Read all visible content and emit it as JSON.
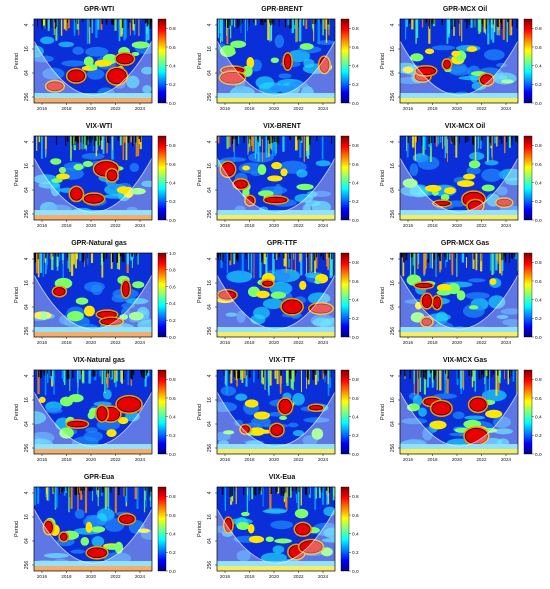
{
  "chart_data": {
    "type": "heatmap",
    "ylabel": "Period",
    "y_ticks": [
      "4",
      "16",
      "64",
      "256"
    ],
    "x_ticks": [
      "2016",
      "2018",
      "2020",
      "2022",
      "2024"
    ],
    "colorbar_ticks": [
      "0.0",
      "0.2",
      "0.4",
      "0.6",
      "0.8"
    ],
    "colorbar_ticks_gpr_natural_gas": [
      "0.0",
      "0.2",
      "0.4",
      "0.6",
      "0.8",
      "1.0"
    ],
    "colorscale": [
      "#00007f",
      "#0000ff",
      "#0080ff",
      "#00ffff",
      "#80ff80",
      "#ffff00",
      "#ff8000",
      "#ff0000",
      "#7f0000"
    ],
    "panels": [
      {
        "id": "gpr-wti",
        "title": "GPR-WTI"
      },
      {
        "id": "gpr-brent",
        "title": "GPR-BRENT"
      },
      {
        "id": "gpr-mcx-oil",
        "title": "GPR-MCX Oil"
      },
      {
        "id": "vix-wti",
        "title": "VIX-WTI"
      },
      {
        "id": "vix-brent",
        "title": "VIX-BRENT"
      },
      {
        "id": "vix-mcx-oil",
        "title": "VIX-MCX Oil"
      },
      {
        "id": "gpr-natural-gas",
        "title": "GPR-Natural gas"
      },
      {
        "id": "gpr-ttf",
        "title": "GPR-TTF"
      },
      {
        "id": "gpr-mcx-gas",
        "title": "GPR-MCX Gas"
      },
      {
        "id": "vix-natural-gas",
        "title": "VIX-Natural gas"
      },
      {
        "id": "vix-ttf",
        "title": "VIX-TTF"
      },
      {
        "id": "vix-mcx-gas",
        "title": "VIX-MCX Gas"
      },
      {
        "id": "gpr-eua",
        "title": "GPR-Eua"
      },
      {
        "id": "vix-eua",
        "title": "VIX-Eua"
      }
    ]
  }
}
